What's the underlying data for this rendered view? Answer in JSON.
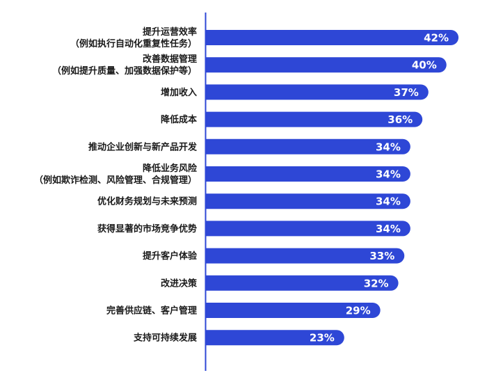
{
  "chart_data": {
    "type": "bar",
    "orientation": "horizontal",
    "title": "",
    "xlabel": "",
    "ylabel": "",
    "categories": [
      [
        "提升运营效率",
        "（例如执行自动化重复性任务）"
      ],
      [
        "改善数据管理",
        "（例如提升质量、加强数据保护等）"
      ],
      [
        "增加收入"
      ],
      [
        "降低成本"
      ],
      [
        "推动企业创新与新产品开发"
      ],
      [
        "降低业务风险",
        "（例如欺诈检测、风险管理、合规管理）"
      ],
      [
        "优化财务规划与未来预测"
      ],
      [
        "获得显著的市场竞争优势"
      ],
      [
        "提升客户体验"
      ],
      [
        "改进决策"
      ],
      [
        "完善供应链、客户管理"
      ],
      [
        "支持可持续发展"
      ]
    ],
    "values": [
      42,
      40,
      37,
      36,
      34,
      34,
      34,
      34,
      33,
      32,
      29,
      23
    ],
    "value_labels": [
      "42%",
      "40%",
      "37%",
      "36%",
      "34%",
      "34%",
      "34%",
      "34%",
      "33%",
      "32%",
      "29%",
      "23%"
    ],
    "xlim": [
      0,
      43.5
    ],
    "grid": false,
    "legend": "none",
    "colors": {
      "bar": "#2e47d6",
      "axis": "#2e47d6",
      "label_text": "#1a1a1a",
      "value_text": "#ffffff"
    }
  }
}
